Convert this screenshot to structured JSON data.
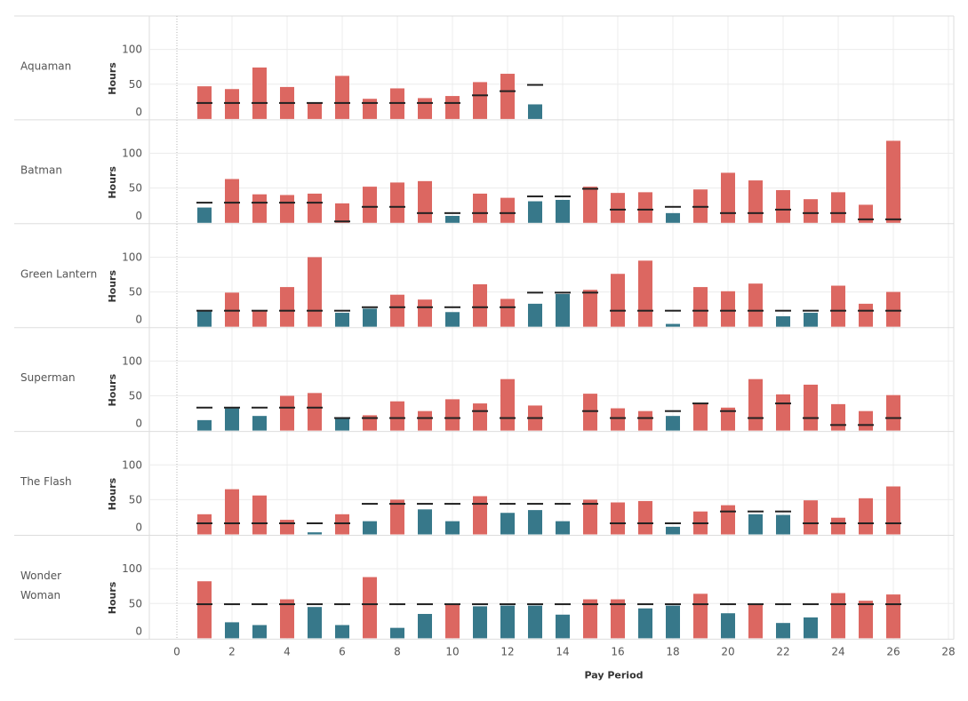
{
  "colors": {
    "over": "#dc6761",
    "under": "#37788a",
    "target": "#222222",
    "grid": "#ececec",
    "border": "#dddddd",
    "text": "#555555",
    "axis_title": "#333333"
  },
  "chart_data": {
    "type": "bar",
    "xlabel": "Pay Period",
    "ylabel": "Hours",
    "xlim": [
      -1,
      28
    ],
    "ylim": [
      0,
      120
    ],
    "x_ticks": [
      0,
      2,
      4,
      6,
      8,
      10,
      12,
      14,
      16,
      18,
      20,
      22,
      24,
      26,
      28
    ],
    "y_ticks": [
      0,
      50,
      100
    ],
    "grid": true,
    "reference_line_at_x": 0,
    "series": [
      {
        "name": "Aquaman",
        "x": [
          1,
          2,
          3,
          4,
          5,
          6,
          7,
          8,
          9,
          10,
          11,
          12,
          13
        ],
        "hours": [
          47,
          43,
          74,
          46,
          23,
          62,
          29,
          44,
          30,
          33,
          53,
          65,
          21
        ],
        "target": [
          23,
          23,
          23,
          23,
          23,
          23,
          23,
          23,
          23,
          23,
          34,
          40,
          49
        ]
      },
      {
        "name": "Batman",
        "x": [
          1,
          2,
          3,
          4,
          5,
          6,
          7,
          8,
          9,
          10,
          11,
          12,
          13,
          14,
          15,
          16,
          17,
          18,
          19,
          20,
          21,
          22,
          23,
          24,
          25,
          26
        ],
        "hours": [
          22,
          63,
          41,
          40,
          42,
          28,
          52,
          58,
          60,
          10,
          42,
          36,
          31,
          33,
          52,
          43,
          44,
          14,
          48,
          72,
          61,
          47,
          34,
          44,
          26,
          118
        ],
        "target": [
          29,
          29,
          29,
          29,
          29,
          2,
          23,
          23,
          14,
          14,
          14,
          14,
          38,
          38,
          49,
          19,
          19,
          23,
          23,
          14,
          14,
          19,
          14,
          14,
          5,
          5
        ]
      },
      {
        "name": "Green Lantern",
        "x": [
          1,
          2,
          3,
          4,
          5,
          6,
          7,
          8,
          9,
          10,
          11,
          12,
          13,
          14,
          15,
          16,
          17,
          18,
          19,
          20,
          21,
          22,
          23,
          24,
          25,
          26
        ],
        "hours": [
          22,
          49,
          23,
          57,
          100,
          20,
          26,
          46,
          39,
          21,
          61,
          40,
          33,
          47,
          53,
          76,
          95,
          4,
          57,
          51,
          62,
          15,
          20,
          59,
          33,
          50
        ],
        "target": [
          23,
          23,
          23,
          23,
          23,
          23,
          28,
          28,
          28,
          28,
          28,
          28,
          49,
          49,
          49,
          23,
          23,
          23,
          23,
          23,
          23,
          23,
          23,
          23,
          23,
          23
        ]
      },
      {
        "name": "Superman",
        "x": [
          1,
          2,
          3,
          4,
          5,
          6,
          7,
          8,
          9,
          10,
          11,
          12,
          13,
          15,
          16,
          17,
          18,
          19,
          20,
          21,
          22,
          23,
          24,
          25,
          26
        ],
        "hours": [
          15,
          32,
          21,
          50,
          54,
          17,
          22,
          42,
          28,
          45,
          39,
          74,
          36,
          53,
          32,
          28,
          21,
          39,
          33,
          74,
          52,
          66,
          38,
          28,
          51
        ],
        "target": [
          33,
          33,
          33,
          33,
          33,
          18,
          18,
          18,
          18,
          18,
          28,
          18,
          18,
          28,
          18,
          18,
          28,
          39,
          28,
          18,
          39,
          18,
          8,
          8,
          18
        ]
      },
      {
        "name": "The Flash",
        "x": [
          1,
          2,
          3,
          4,
          5,
          6,
          7,
          8,
          9,
          10,
          11,
          12,
          13,
          14,
          15,
          16,
          17,
          18,
          19,
          20,
          21,
          22,
          23,
          24,
          25,
          26
        ],
        "hours": [
          29,
          65,
          56,
          21,
          3,
          29,
          19,
          50,
          36,
          19,
          55,
          31,
          35,
          19,
          50,
          46,
          48,
          11,
          33,
          42,
          29,
          28,
          49,
          24,
          52,
          69
        ],
        "target": [
          16,
          16,
          16,
          16,
          16,
          16,
          44,
          44,
          44,
          44,
          44,
          44,
          44,
          44,
          44,
          16,
          16,
          16,
          16,
          33,
          33,
          33,
          16,
          16,
          16,
          16
        ]
      },
      {
        "name": "Wonder Woman",
        "x": [
          1,
          2,
          3,
          4,
          5,
          6,
          7,
          8,
          9,
          10,
          11,
          12,
          13,
          14,
          15,
          16,
          17,
          18,
          19,
          20,
          21,
          22,
          23,
          24,
          25,
          26
        ],
        "hours": [
          82,
          23,
          19,
          56,
          45,
          19,
          88,
          15,
          35,
          49,
          46,
          47,
          47,
          34,
          56,
          56,
          43,
          47,
          64,
          36,
          49,
          22,
          30,
          65,
          54,
          63
        ],
        "target": [
          49,
          49,
          49,
          49,
          49,
          49,
          49,
          49,
          49,
          49,
          49,
          49,
          49,
          49,
          49,
          49,
          49,
          49,
          49,
          49,
          49,
          49,
          49,
          49,
          49,
          49
        ]
      }
    ],
    "row_labels": [
      {
        "lines": [
          "Aquaman"
        ]
      },
      {
        "lines": [
          "Batman"
        ]
      },
      {
        "lines": [
          "Green Lantern"
        ]
      },
      {
        "lines": [
          "Superman"
        ]
      },
      {
        "lines": [
          "The Flash"
        ]
      },
      {
        "lines": [
          "Wonder",
          "Woman"
        ]
      }
    ]
  }
}
